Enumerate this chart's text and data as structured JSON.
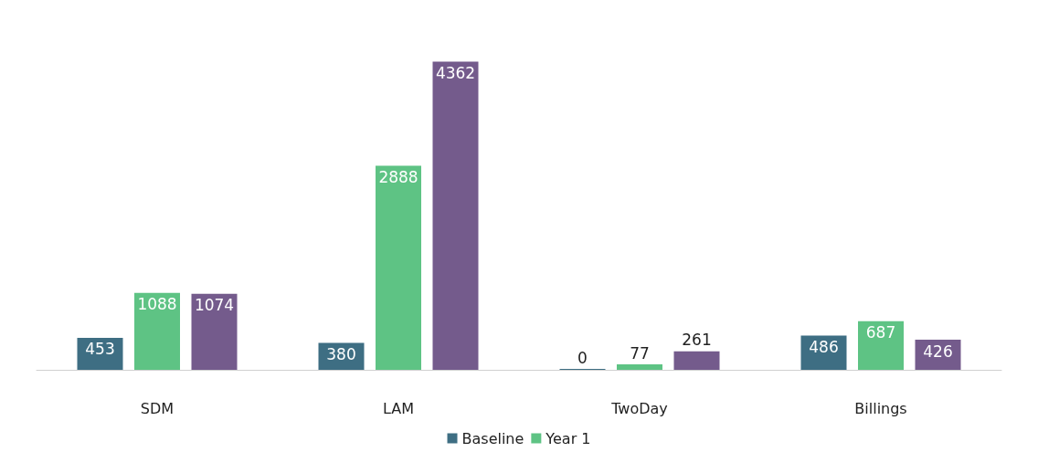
{
  "chart_data": {
    "type": "bar",
    "categories": [
      "SDM",
      "LAM",
      "TwoDay",
      "Billings"
    ],
    "series": [
      {
        "name": "Baseline",
        "color": "#3e6e83",
        "values": [
          453,
          380,
          0,
          486
        ]
      },
      {
        "name": "Year 1",
        "color": "#5ec384",
        "values": [
          1088,
          2888,
          77,
          687
        ]
      },
      {
        "color": "#745b8c",
        "values": [
          1074,
          4362,
          261,
          426
        ]
      }
    ],
    "data_labels": true,
    "legend": "bottom"
  }
}
